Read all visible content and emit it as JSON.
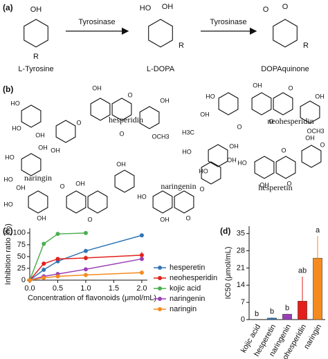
{
  "panels": {
    "a": {
      "label": "(a)",
      "enzyme": [
        "Tyrosinase",
        "Tyrosinase"
      ],
      "compounds": [
        {
          "name": "L-Tyrosine",
          "atoms": [
            "OH",
            "R"
          ]
        },
        {
          "name": "L-DOPA",
          "atoms": [
            "HO",
            "OH",
            "R"
          ]
        },
        {
          "name": "DOPAquinone",
          "atoms": [
            "O",
            "O",
            "R"
          ]
        }
      ]
    },
    "b": {
      "label": "(b)",
      "compounds": [
        {
          "name": "hesperidin",
          "atoms": [
            "OH",
            "O",
            "O",
            "OH",
            "OCH3",
            "HO",
            "HO",
            "OH",
            "OH",
            "O"
          ]
        },
        {
          "name": "neohesperidin",
          "atoms": [
            "OH",
            "O",
            "O",
            "OH",
            "OCH3",
            "HO",
            "OH",
            "H3C",
            "HO",
            "OH",
            "HO",
            "O"
          ]
        },
        {
          "name": "naringin",
          "atoms": [
            "HO",
            "OH",
            "HO",
            "OH",
            "HO",
            "OH",
            "O",
            "OH",
            "O",
            "OH"
          ]
        },
        {
          "name": "naringenin",
          "atoms": [
            "OH",
            "HO",
            "O",
            "OH",
            "O"
          ]
        },
        {
          "name": "hesperetin",
          "atoms": [
            "HO",
            "O",
            "OH",
            "O",
            "OH",
            "O"
          ]
        }
      ]
    },
    "c": {
      "label": "(c)"
    },
    "d": {
      "label": "(d)"
    }
  },
  "chart_data": [
    {
      "type": "line",
      "x_label": "Concentration of flavonoids (μmol/mL)",
      "y_label": "Inhibition ratio (%)",
      "x": [
        0,
        0.25,
        0.5,
        1,
        2
      ],
      "series": [
        {
          "name": "hesperetin",
          "color": "#2e75b6",
          "values": [
            0,
            22,
            40,
            62,
            95
          ],
          "errors": [
            0,
            1,
            2,
            4,
            1
          ]
        },
        {
          "name": "neohesperidin",
          "color": "#e3201b",
          "values": [
            0,
            35,
            45,
            47,
            53
          ],
          "errors": [
            0,
            2,
            4,
            5,
            7
          ]
        },
        {
          "name": "kojic acid",
          "color": "#4caf50",
          "values": [
            0,
            77,
            98,
            100,
            null
          ],
          "errors": [
            0,
            1,
            1,
            1,
            null
          ]
        },
        {
          "name": "naringenin",
          "color": "#9b3fb5",
          "values": [
            0,
            8,
            13,
            23,
            45
          ],
          "errors": [
            0,
            1,
            1,
            1,
            1
          ]
        },
        {
          "name": "naringin",
          "color": "#f58a1f",
          "values": [
            0,
            5,
            8,
            11,
            16
          ],
          "errors": [
            0,
            1,
            1,
            1,
            1
          ]
        }
      ],
      "xlim": [
        0,
        2.1
      ],
      "xticks": [
        {
          "value": 0,
          "label": "0.0"
        },
        {
          "value": 0.5,
          "label": "0.5"
        },
        {
          "value": 1,
          "label": "1.0"
        },
        {
          "value": 1.5,
          "label": "1.5"
        },
        {
          "value": 2,
          "label": "2.0"
        }
      ],
      "ylim": [
        0,
        110
      ],
      "yticks": [
        0,
        25,
        50,
        75,
        100
      ],
      "legend": "right"
    },
    {
      "type": "bar",
      "y_label": "IC50 (μmol/mL)",
      "categories": [
        "kojic acid",
        "hesperetin",
        "naringenin",
        "neohesperidin",
        "naringin"
      ],
      "values": [
        0,
        0.6,
        2.2,
        7.5,
        25
      ],
      "errors": [
        0,
        0.3,
        0.2,
        10,
        9
      ],
      "annotations": [
        "b",
        "b",
        "b",
        "ab",
        "a"
      ],
      "colors": [
        "#4caf50",
        "#2e75b6",
        "#9b3fb5",
        "#e3201b",
        "#f58a1f"
      ],
      "ylim": [
        0,
        38
      ],
      "yticks": [
        0,
        7,
        14,
        21,
        28,
        35
      ]
    }
  ]
}
